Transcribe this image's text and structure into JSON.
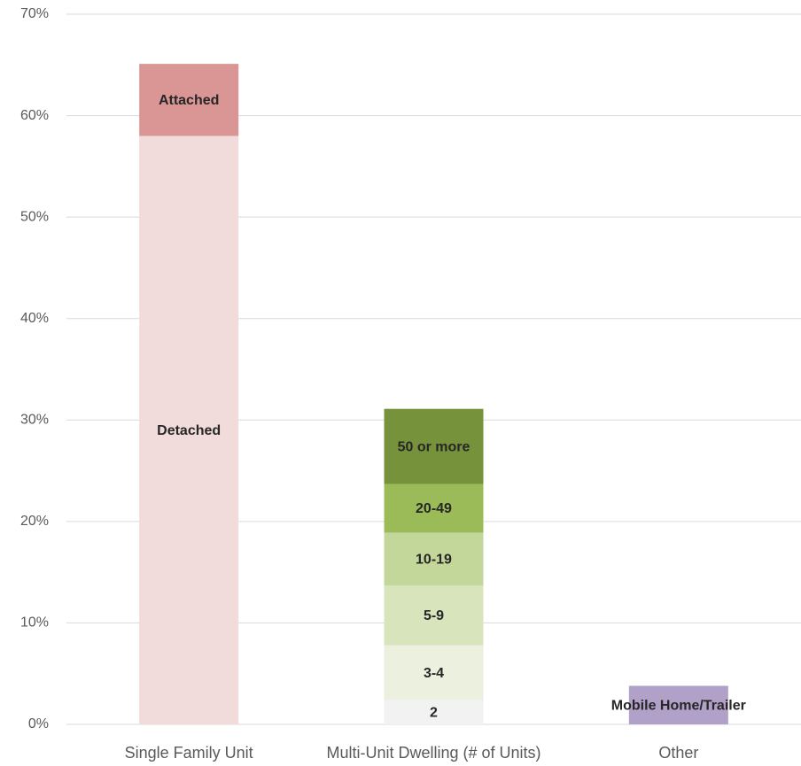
{
  "chart_data": {
    "type": "stacked_bar",
    "categories": [
      "Single Family Unit",
      "Multi-Unit Dwelling (# of Units)",
      "Other"
    ],
    "series": [
      {
        "name": "Detached",
        "color": "#f2dcdb",
        "values": [
          58,
          null,
          null
        ]
      },
      {
        "name": "Attached",
        "color": "#da9694",
        "values": [
          7.1,
          null,
          null
        ]
      },
      {
        "name": "2",
        "color": "#f2f2f2",
        "values": [
          null,
          2.4,
          null
        ]
      },
      {
        "name": "3-4",
        "color": "#ebf1de",
        "values": [
          null,
          5.4,
          null
        ]
      },
      {
        "name": "5-9",
        "color": "#d8e4bc",
        "values": [
          null,
          5.9,
          null
        ]
      },
      {
        "name": "10-19",
        "color": "#c4d79b",
        "values": [
          null,
          5.2,
          null
        ]
      },
      {
        "name": "20-49",
        "color": "#9bbb59",
        "values": [
          null,
          4.8,
          null
        ]
      },
      {
        "name": "50 or more",
        "color": "#76933c",
        "values": [
          null,
          7.4,
          null
        ]
      },
      {
        "name": "Mobile Home/Trailer",
        "color": "#b1a0c7",
        "values": [
          null,
          null,
          3.8
        ]
      }
    ],
    "ylim": [
      0,
      70
    ],
    "yticks": [
      {
        "value": 0,
        "label": "0%"
      },
      {
        "value": 10,
        "label": "10%"
      },
      {
        "value": 20,
        "label": "20%"
      },
      {
        "value": 30,
        "label": "30%"
      },
      {
        "value": 40,
        "label": "40%"
      },
      {
        "value": 50,
        "label": "50%"
      },
      {
        "value": 60,
        "label": "60%"
      },
      {
        "value": 70,
        "label": "70%"
      }
    ],
    "grid": true
  }
}
